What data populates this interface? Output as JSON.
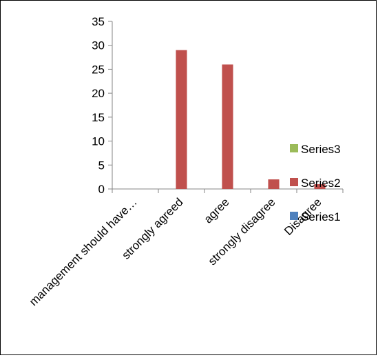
{
  "chart_data": {
    "type": "bar",
    "categories": [
      "management should have…",
      "strongly agreed",
      "agree",
      "strongly disagree",
      "Disagree"
    ],
    "series": [
      {
        "name": "Series1",
        "values": [
          0,
          0,
          0,
          0,
          0
        ],
        "color": "#4f81bd"
      },
      {
        "name": "Series2",
        "values": [
          0,
          29,
          26,
          2,
          1
        ],
        "color": "#c0504d"
      },
      {
        "name": "Series3",
        "values": [
          0,
          0,
          0,
          0,
          0
        ],
        "color": "#9bbb59"
      }
    ],
    "title": "",
    "xlabel": "",
    "ylabel": "",
    "ylim": [
      0,
      35
    ],
    "yticks": [
      0,
      5,
      10,
      15,
      20,
      25,
      30,
      35
    ],
    "grid": false,
    "legend": {
      "placement": "right",
      "order": [
        "Series3",
        "Series2",
        "Series1"
      ]
    },
    "border_color": "#000000",
    "axis_color": "#868686"
  }
}
